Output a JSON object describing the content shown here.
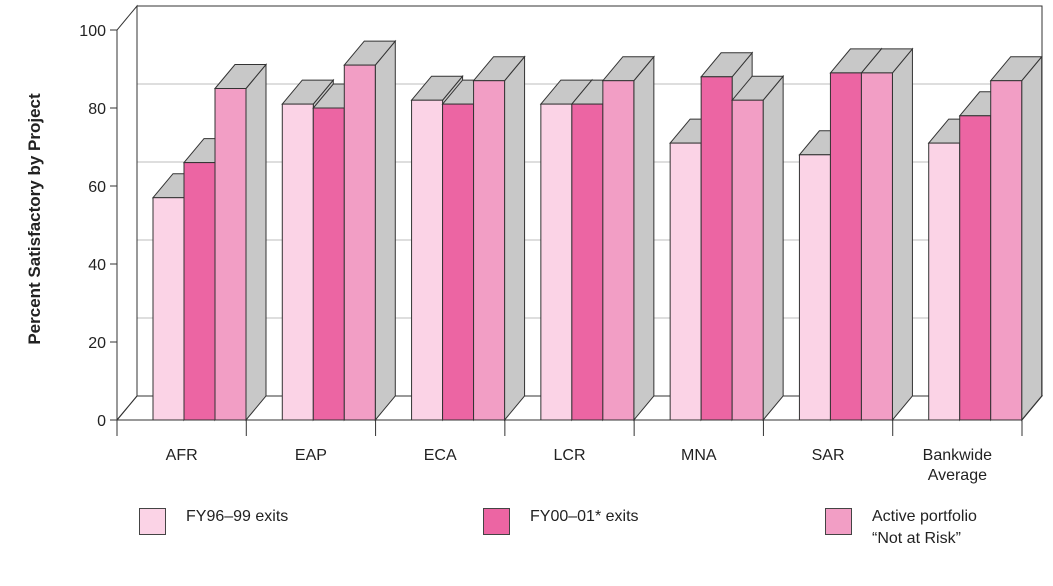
{
  "chart_data": {
    "type": "bar",
    "ylabel": "Percent Satisfactory by Project",
    "xlabel": "",
    "ylim": [
      0,
      100
    ],
    "yticks": [
      0,
      20,
      40,
      60,
      80,
      100
    ],
    "grid": true,
    "categories": [
      "AFR",
      "EAP",
      "ECA",
      "LCR",
      "MNA",
      "SAR",
      "Bankwide\nAverage"
    ],
    "series": [
      {
        "name": "FY96–99 exits",
        "color": "#fbd3e6",
        "values": [
          57,
          81,
          82,
          81,
          71,
          68,
          71
        ]
      },
      {
        "name": "FY00–01* exits",
        "color": "#ec65a3",
        "values": [
          66,
          80,
          81,
          81,
          88,
          89,
          78
        ]
      },
      {
        "name": "Active portfolio\n“Not at Risk”",
        "color": "#f29ec5",
        "values": [
          85,
          91,
          87,
          87,
          82,
          89,
          87
        ]
      }
    ],
    "legend_position": "bottom"
  }
}
